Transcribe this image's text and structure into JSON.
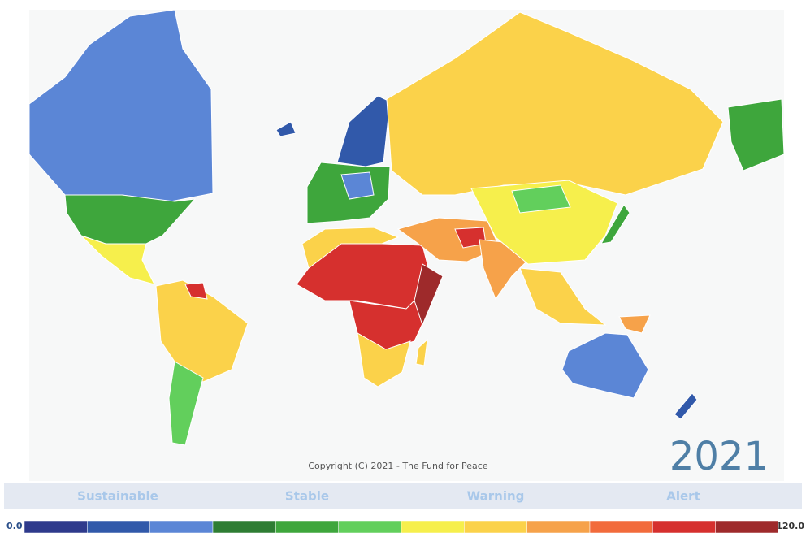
{
  "map": {
    "year": "2021",
    "copyright": "Copyright (C) 2021 - The Fund for Peace",
    "categories": [
      "Sustainable",
      "Stable",
      "Warning",
      "Alert"
    ],
    "scale": {
      "min_label": "0.0",
      "max_label": "120.0",
      "colors": [
        "#2e3a8c",
        "#3159aa",
        "#5b86d6",
        "#2e7d33",
        "#3ea63c",
        "#62cf5c",
        "#f6ef4c",
        "#fbd24a",
        "#f6a24a",
        "#f26b3c",
        "#d6302e",
        "#9e2a2b"
      ]
    }
  }
}
